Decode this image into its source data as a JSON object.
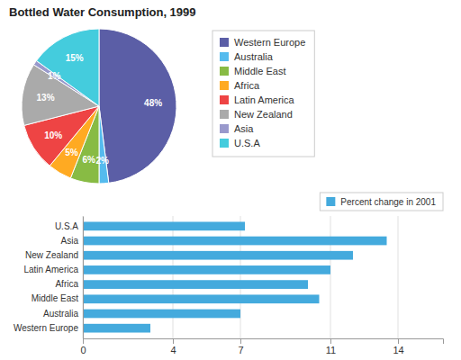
{
  "chart_data": [
    {
      "type": "pie",
      "title": "Bottled Water Consumption, 1999",
      "categories": [
        "Western Europe",
        "Australia",
        "Middle East",
        "Africa",
        "Latin America",
        "New Zealand",
        "Asia",
        "U.S.A"
      ],
      "values": [
        48,
        2,
        6,
        5,
        10,
        13,
        1,
        15
      ],
      "value_labels": [
        "48%",
        "2%",
        "6%",
        "5%",
        "10%",
        "13%",
        "1%",
        "15%"
      ],
      "colors": [
        "#5b5ea6",
        "#55bbee",
        "#88bb44",
        "#ffaa22",
        "#ee4444",
        "#aaaaaa",
        "#9999cc",
        "#44ccdd"
      ],
      "data_labels": true,
      "legend": "right"
    },
    {
      "type": "bar",
      "orientation": "horizontal",
      "categories": [
        "Western Europe",
        "Australia",
        "Middle East",
        "Africa",
        "Latin America",
        "New Zealand",
        "Asia",
        "U.S.A"
      ],
      "series": [
        {
          "name": "Percent change in 2001",
          "color": "#44aadd",
          "values": [
            3.0,
            7.0,
            10.5,
            10.0,
            11.0,
            12.0,
            13.5,
            7.2
          ]
        }
      ],
      "xlim": [
        0,
        16
      ],
      "xticks": [
        0,
        4,
        7,
        11,
        14
      ],
      "grid": true,
      "legend": "top"
    }
  ]
}
